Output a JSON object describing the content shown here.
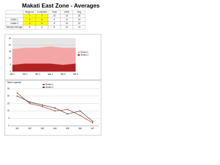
{
  "title": "Makati East Zone - Averages",
  "table": {
    "header": [
      "",
      "Regional",
      "Compliant",
      "Total",
      "2006",
      "Avg"
    ],
    "rows": [
      [
        "",
        "7",
        "7",
        "10",
        "13",
        "16"
      ],
      [
        "Grade 1",
        "5",
        "6",
        "9",
        "12",
        "14"
      ],
      [
        "Grade 2",
        "4",
        "5",
        "8",
        "10",
        "12"
      ],
      [
        "Weekly Average",
        "5",
        "6",
        "9",
        "12",
        "14"
      ]
    ]
  },
  "chart_data": [
    {
      "type": "area",
      "categories": [
        "Wk 1",
        "Wk 2",
        "Wk 3",
        "Wk 4",
        "Wk 5",
        "Wk 6"
      ],
      "series": [
        {
          "name": "Series 1",
          "color": "#f4a6a6",
          "values": [
            17,
            18,
            18,
            19,
            18,
            18
          ]
        },
        {
          "name": "Series 2",
          "color": "#b22222",
          "values": [
            5,
            6,
            6,
            6,
            5,
            6
          ]
        }
      ],
      "ylim": [
        0,
        25
      ],
      "yticks": [
        0,
        5,
        10,
        15,
        20,
        25
      ],
      "grid": true
    },
    {
      "type": "line",
      "subtitle": "Table Legends",
      "categories": [
        "W1",
        "W2",
        "W3",
        "W4",
        "W5",
        "W6",
        "W7"
      ],
      "series": [
        {
          "name": "Series 1",
          "color": "#c0392b",
          "values": [
            22,
            15,
            13,
            10,
            11,
            7,
            2
          ]
        },
        {
          "name": "Series 2",
          "color": "#444444",
          "values": [
            20,
            16,
            14,
            12,
            8,
            10,
            3
          ]
        }
      ],
      "ylim": [
        0,
        25
      ],
      "yticks": [
        0,
        5,
        10,
        15,
        20,
        25
      ],
      "grid": true
    }
  ]
}
